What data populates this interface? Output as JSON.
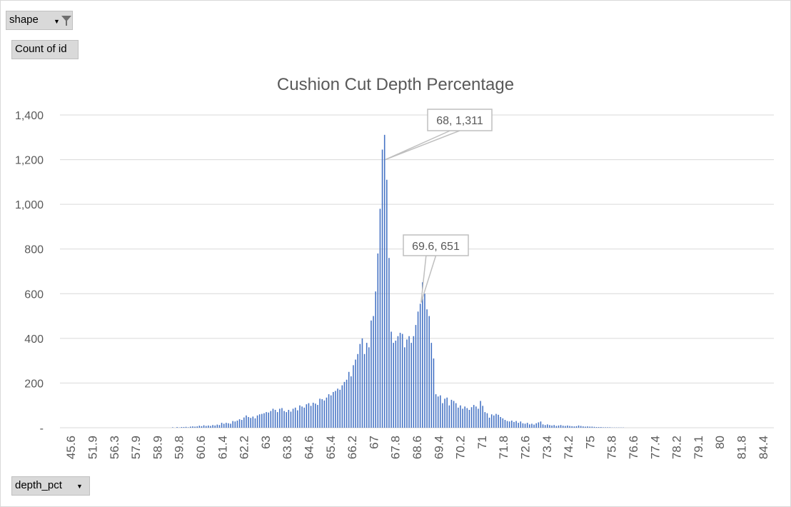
{
  "filter_button": {
    "label": "shape",
    "icon": "filter-icon",
    "dropdown_icon": "dropdown-arrow-icon"
  },
  "values_button": {
    "label": "Count of id"
  },
  "axis_button": {
    "label": "depth_pct",
    "dropdown_icon": "dropdown-arrow-icon"
  },
  "colors": {
    "bar": "#4472c4",
    "grid": "#d9d9d9",
    "text": "#595959",
    "callout_border": "#bfbfbf"
  },
  "chart_data": {
    "type": "bar",
    "title": "Cushion Cut Depth Percentage",
    "ylim": [
      0,
      1400
    ],
    "yticks": [
      0,
      200,
      400,
      600,
      800,
      1000,
      1200,
      1400
    ],
    "ytick_labels": [
      "-",
      "200",
      "400",
      "600",
      "800",
      "1,000",
      "1,200",
      "1,400"
    ],
    "x_tick_labels": [
      "45.6",
      "51.9",
      "56.3",
      "57.9",
      "58.9",
      "59.8",
      "60.6",
      "61.4",
      "62.2",
      "63",
      "63.8",
      "64.6",
      "65.4",
      "66.2",
      "67",
      "67.8",
      "68.6",
      "69.4",
      "70.2",
      "71",
      "71.8",
      "72.6",
      "73.4",
      "74.2",
      "75",
      "75.8",
      "76.6",
      "77.4",
      "78.2",
      "79.1",
      "80",
      "81.8",
      "84.4"
    ],
    "grid": true,
    "legend": "none",
    "annotations": [
      {
        "x": 68,
        "y": 1311,
        "text": "68, 1,311"
      },
      {
        "x": 69.6,
        "y": 651,
        "text": "69.6, 651"
      }
    ],
    "series": [
      {
        "values": [
          0,
          0,
          0,
          0,
          0,
          0,
          0,
          0,
          0,
          0,
          0,
          0,
          0,
          0,
          0,
          0,
          0,
          0,
          0,
          0,
          0,
          0,
          0,
          0,
          0,
          0,
          0,
          0,
          0,
          0,
          0,
          0,
          0,
          0,
          0,
          0,
          0,
          0,
          0,
          0,
          0,
          0,
          0,
          0,
          0,
          0,
          0,
          0,
          0,
          0,
          2,
          0,
          3,
          1,
          3,
          3,
          4,
          2,
          5,
          6,
          5,
          6,
          9,
          7,
          11,
          8,
          10,
          8,
          12,
          10,
          14,
          12,
          22,
          18,
          22,
          20,
          18,
          30,
          28,
          32,
          38,
          35,
          46,
          55,
          48,
          44,
          50,
          42,
          55,
          60,
          62,
          65,
          70,
          68,
          75,
          85,
          80,
          70,
          85,
          88,
          75,
          70,
          80,
          72,
          85,
          90,
          78,
          100,
          95,
          90,
          105,
          110,
          98,
          112,
          108,
          102,
          130,
          128,
          122,
          135,
          150,
          145,
          160,
          165,
          175,
          170,
          190,
          205,
          215,
          250,
          230,
          280,
          305,
          330,
          375,
          400,
          330,
          380,
          360,
          480,
          500,
          610,
          780,
          980,
          1245,
          1311,
          1110,
          760,
          430,
          380,
          390,
          410,
          425,
          420,
          360,
          395,
          410,
          380,
          410,
          460,
          520,
          555,
          651,
          600,
          530,
          500,
          380,
          310,
          150,
          140,
          145,
          110,
          130,
          135,
          100,
          125,
          120,
          110,
          90,
          100,
          85,
          95,
          88,
          80,
          92,
          102,
          95,
          85,
          120,
          98,
          70,
          65,
          45,
          60,
          55,
          62,
          58,
          48,
          42,
          35,
          30,
          28,
          32,
          26,
          30,
          22,
          28,
          20,
          18,
          22,
          15,
          18,
          14,
          20,
          24,
          28,
          15,
          12,
          15,
          12,
          10,
          12,
          8,
          10,
          12,
          9,
          8,
          10,
          8,
          7,
          6,
          7,
          10,
          8,
          6,
          5,
          6,
          5,
          5,
          4,
          3,
          3,
          3,
          2,
          2,
          2,
          2,
          1,
          1,
          1,
          1,
          1,
          1,
          0,
          0,
          0,
          0,
          0,
          0,
          0,
          0,
          0,
          0,
          0,
          0,
          0,
          0,
          0,
          0,
          0,
          0,
          0,
          0,
          0,
          0,
          0,
          0,
          0,
          0,
          0,
          0,
          0,
          0,
          0,
          0,
          0,
          0,
          0,
          0,
          0,
          0,
          0,
          0,
          0,
          0,
          0,
          0,
          0,
          0,
          0,
          0,
          0,
          0,
          0,
          0,
          0,
          0,
          0,
          0,
          0,
          0,
          0,
          0,
          0,
          0,
          0,
          0,
          0,
          0,
          0
        ]
      }
    ]
  }
}
